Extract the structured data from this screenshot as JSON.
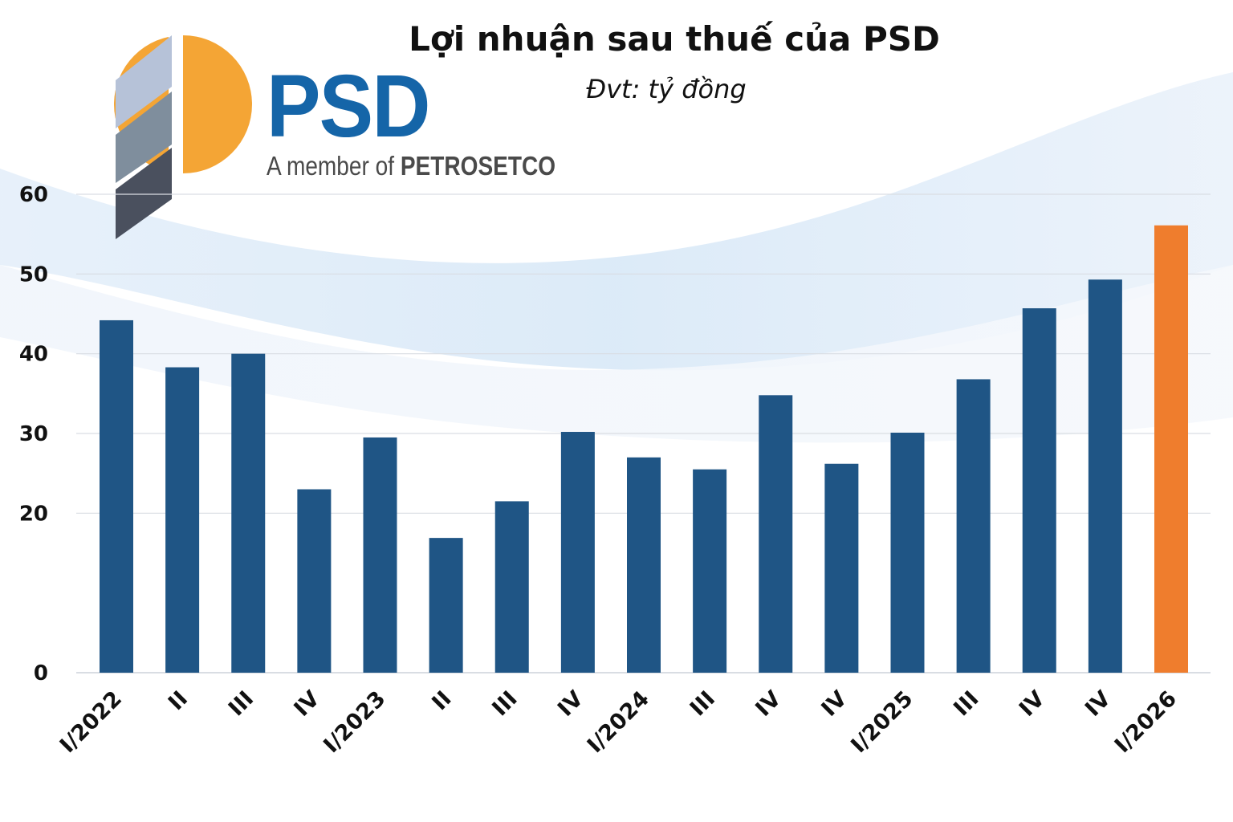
{
  "logo": {
    "wordmark": "PSD",
    "tagline_prefix": "A member of",
    "tagline_company": "PETROSETCO"
  },
  "colors": {
    "bar": "#1f5585",
    "highlight": "#ef7d2d",
    "grid": "#d9dde3",
    "logo_blue": "#1565a8",
    "logo_orange": "#f4a535"
  },
  "chart_data": {
    "type": "bar",
    "title": "Lợi nhuận sau thuế của PSD",
    "subtitle": "Đvt: tỷ đồng",
    "categories": [
      "I/2022",
      "II",
      "III",
      "IV",
      "I/2023",
      "II",
      "III",
      "IV",
      "I/2024",
      "III",
      "IV",
      "IV",
      "I/2025",
      "III",
      "IV",
      "IV",
      "I/2026"
    ],
    "values": [
      44.2,
      38.3,
      40.0,
      23.0,
      29.5,
      16.9,
      21.5,
      30.2,
      27.0,
      25.5,
      34.8,
      26.2,
      30.1,
      36.8,
      45.7,
      49.3,
      56.1
    ],
    "highlight_index": 16,
    "yticks": [
      0,
      20,
      30,
      40,
      50,
      60
    ],
    "ylim": [
      0,
      60
    ],
    "grid": true,
    "legend": "none"
  }
}
